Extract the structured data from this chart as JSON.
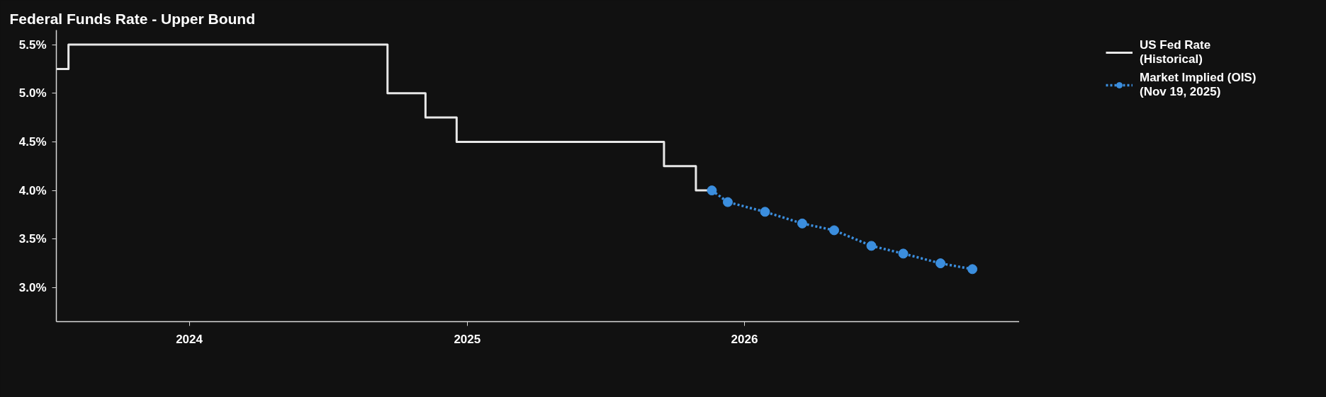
{
  "chart_data": {
    "type": "step",
    "title": "Federal Funds Rate - Upper Bound",
    "series": [
      {
        "name": "US Fed Rate (Historical)",
        "color": "#e8e8e8",
        "line_style": "solid",
        "x": [
          "2023-07-10",
          "2023-07-26",
          "2024-09-18",
          "2024-11-07",
          "2024-12-18",
          "2025-09-17",
          "2025-10-29",
          "2025-11-19"
        ],
        "values": [
          5.25,
          5.5,
          5.0,
          4.75,
          4.5,
          4.25,
          4.0,
          4.0
        ]
      },
      {
        "name": "Market Implied (OIS) (Nov 19, 2025)",
        "type": "line",
        "color": "#3b8ede",
        "line_style": "dotted",
        "marker": "circle",
        "x": [
          "2025-11-19",
          "2025-12-10",
          "2026-01-28",
          "2026-03-18",
          "2026-04-29",
          "2026-06-17",
          "2026-07-29",
          "2026-09-16",
          "2026-10-28"
        ],
        "values": [
          4.0,
          3.88,
          3.78,
          3.66,
          3.59,
          3.43,
          3.35,
          3.25,
          3.19
        ]
      }
    ],
    "xlim": [
      "2023-07-10",
      "2026-12-29"
    ],
    "xticks": [
      {
        "value": "2024-01-01",
        "label": "2024"
      },
      {
        "value": "2025-01-01",
        "label": "2025"
      },
      {
        "value": "2026-01-01",
        "label": "2026"
      }
    ],
    "ylim": [
      2.65,
      5.65
    ],
    "yticks": [
      {
        "value": 3.0,
        "label": "3.0%"
      },
      {
        "value": 3.5,
        "label": "3.5%"
      },
      {
        "value": 4.0,
        "label": "4.0%"
      },
      {
        "value": 4.5,
        "label": "4.5%"
      },
      {
        "value": 5.0,
        "label": "5.0%"
      },
      {
        "value": 5.5,
        "label": "5.5%"
      }
    ],
    "legend": "top right"
  }
}
